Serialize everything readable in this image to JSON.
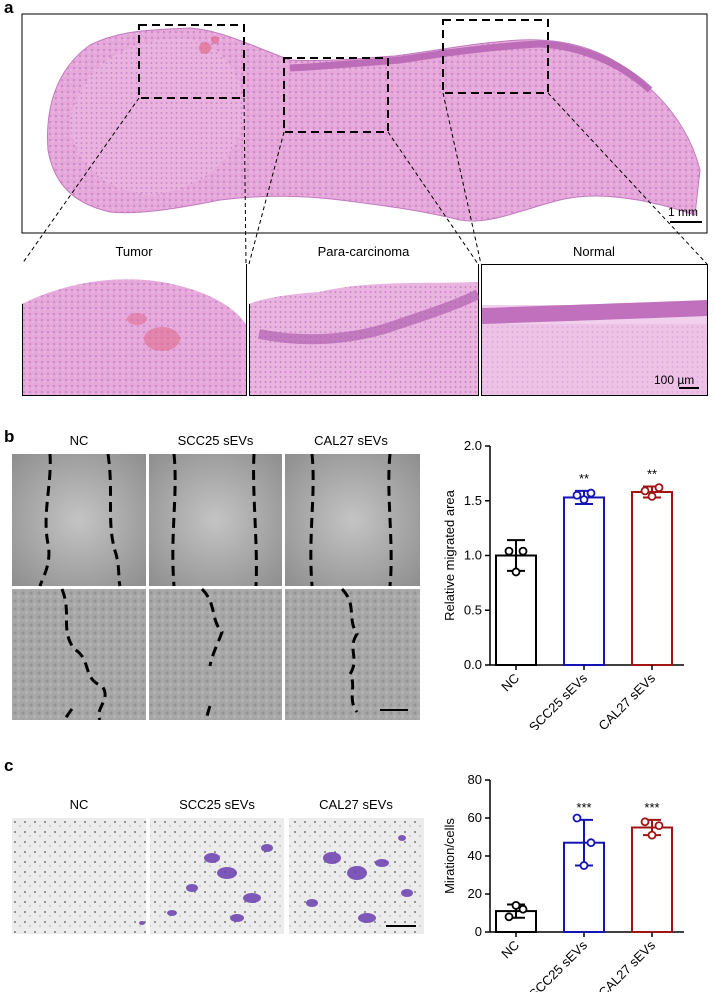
{
  "panels": {
    "a": {
      "letter": "a",
      "overview_scale": "1 mm",
      "zoom_titles": [
        "Tumor",
        "Para-carcinoma",
        "Normal"
      ],
      "zoom_scale": "100 µm"
    },
    "b": {
      "letter": "b",
      "column_titles": [
        "NC",
        "SCC25 sEVs",
        "CAL27 sEVs"
      ]
    },
    "c": {
      "letter": "c",
      "column_titles": [
        "NC",
        "SCC25 sEVs",
        "CAL27 sEVs"
      ]
    }
  },
  "colors": {
    "he_pink": "#e3a3d6",
    "he_dark": "#b866b4",
    "wound_gray": "#b8b8b8",
    "nc": "#000000",
    "scc25": "#1414b4",
    "cal27": "#a01414"
  },
  "chart_data": [
    {
      "type": "bar",
      "categories": [
        "NC",
        "SCC25 sEVs",
        "CAL27 sEVs"
      ],
      "values": [
        1.0,
        1.53,
        1.58
      ],
      "errors": [
        0.14,
        0.06,
        0.05
      ],
      "points": [
        [
          1.04,
          1.04,
          0.85
        ],
        [
          1.55,
          1.57,
          1.51
        ],
        [
          1.59,
          1.62,
          1.54
        ]
      ],
      "significance": [
        "",
        "**",
        "**"
      ],
      "ylabel": "Relative migrated area",
      "ylim": [
        0,
        2.0
      ],
      "yticks": [
        "0.0",
        "0.5",
        "1.0",
        "1.5",
        "2.0"
      ],
      "colors": [
        "#000000",
        "#1414b4",
        "#a01414"
      ]
    },
    {
      "type": "bar",
      "categories": [
        "NC",
        "SCC25 sEVs",
        "CAL27 sEVs"
      ],
      "values": [
        11,
        47,
        55
      ],
      "errors": [
        3.5,
        12,
        4
      ],
      "points": [
        [
          8,
          12,
          14
        ],
        [
          60,
          47,
          35
        ],
        [
          58,
          56,
          51
        ]
      ],
      "significance": [
        "",
        "***",
        "***"
      ],
      "ylabel": "Miration/cells",
      "ylim": [
        0,
        80
      ],
      "yticks": [
        "0",
        "20",
        "40",
        "60",
        "80"
      ],
      "colors": [
        "#000000",
        "#1414b4",
        "#a01414"
      ]
    }
  ]
}
